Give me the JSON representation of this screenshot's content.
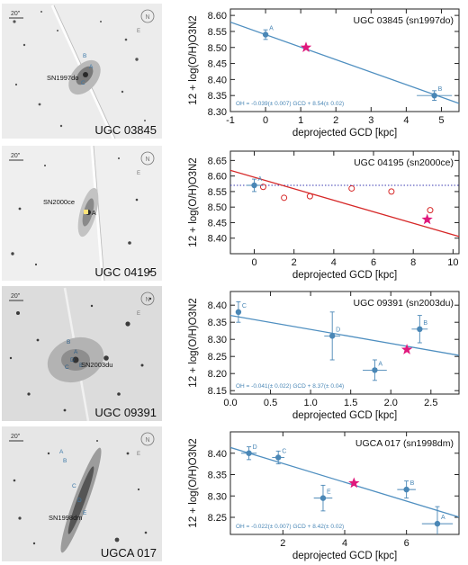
{
  "panels": [
    {
      "galaxy": "UGC 03845",
      "sn_label": "SN1997do",
      "scale": "20\"",
      "regions": [
        "A",
        "B",
        "C"
      ],
      "chart_data": {
        "type": "scatter",
        "title": "UGC 03845 (sn1997do)",
        "xlabel": "deprojected GCD [kpc]",
        "ylabel": "12 + log(O/H)O3N2",
        "xlim": [
          -1,
          5.5
        ],
        "ylim": [
          8.3,
          8.62
        ],
        "xticks": [
          -1,
          0,
          1,
          2,
          3,
          4,
          5
        ],
        "yticks": [
          8.3,
          8.35,
          8.4,
          8.45,
          8.5,
          8.55,
          8.6
        ],
        "points": [
          {
            "label": "A",
            "x": 0.0,
            "y": 8.54,
            "xerr": 0.0,
            "yerr": 0.015
          },
          {
            "label": "B",
            "x": 4.8,
            "y": 8.35,
            "xerr": 0.5,
            "yerr": 0.015
          }
        ],
        "sn": {
          "x": 1.15,
          "y": 8.5
        },
        "fit": {
          "slope": -0.039,
          "intercept": 8.54
        },
        "fit_color": "#4f8fc0",
        "fit_text": "OH = -0.039(± 0.007) GCD + 8.54(± 0.02)"
      }
    },
    {
      "galaxy": "UGC 04195",
      "sn_label": "SN2000ce",
      "scale": "20\"",
      "regions": [
        "A"
      ],
      "chart_data": {
        "type": "scatter",
        "title": "UGC 04195 (sn2000ce)",
        "xlabel": "deprojected GCD [kpc]",
        "ylabel": "12 + log(O/H)O3N2",
        "xlim": [
          -1.2,
          10.3
        ],
        "ylim": [
          8.35,
          8.68
        ],
        "xticks": [
          0,
          2,
          4,
          6,
          8,
          10
        ],
        "yticks": [
          8.4,
          8.45,
          8.5,
          8.55,
          8.6,
          8.65
        ],
        "points": [
          {
            "label": "A",
            "x": 0.0,
            "y": 8.57,
            "xerr": 0.4,
            "yerr": 0.02
          }
        ],
        "open_points": [
          {
            "x": 0.45,
            "y": 8.565
          },
          {
            "x": 1.5,
            "y": 8.53
          },
          {
            "x": 2.8,
            "y": 8.535
          },
          {
            "x": 4.9,
            "y": 8.56
          },
          {
            "x": 6.9,
            "y": 8.55
          },
          {
            "x": 8.85,
            "y": 8.49
          }
        ],
        "sn": {
          "x": 8.7,
          "y": 8.46
        },
        "fit": {
          "slope": -0.0185,
          "intercept": 8.596
        },
        "fit_color": "#d62828",
        "reference_level": 8.57
      }
    },
    {
      "galaxy": "UGC 09391",
      "sn_label": "SN2003du",
      "scale": "20\"",
      "regions": [
        "A",
        "B",
        "C",
        "D",
        "E"
      ],
      "chart_data": {
        "type": "scatter",
        "title": "UGC 09391 (sn2003du)",
        "xlabel": "deprojected GCD [kpc]",
        "ylabel": "12 + log(O/H)O3N2",
        "xlim": [
          0.0,
          2.85
        ],
        "ylim": [
          8.14,
          8.44
        ],
        "xticks": [
          0.0,
          0.5,
          1.0,
          1.5,
          2.0,
          2.5
        ],
        "yticks": [
          8.15,
          8.2,
          8.25,
          8.3,
          8.35,
          8.4
        ],
        "points": [
          {
            "label": "C",
            "x": 0.1,
            "y": 8.38,
            "xerr": 0.0,
            "yerr": 0.03
          },
          {
            "label": "D",
            "x": 1.27,
            "y": 8.31,
            "xerr": 0.1,
            "yerr": 0.07
          },
          {
            "label": "A",
            "x": 1.8,
            "y": 8.21,
            "xerr": 0.15,
            "yerr": 0.03
          },
          {
            "label": "B",
            "x": 2.36,
            "y": 8.33,
            "xerr": 0.1,
            "yerr": 0.04
          }
        ],
        "sn": {
          "x": 2.2,
          "y": 8.27
        },
        "fit": {
          "slope": -0.041,
          "intercept": 8.37
        },
        "fit_color": "#4f8fc0",
        "fit_text": "OH = -0.041(± 0.022) GCD + 8.37(± 0.04)"
      }
    },
    {
      "galaxy": "UGCA 017",
      "sn_label": "SN1998dm",
      "scale": "20\"",
      "regions": [
        "A",
        "B",
        "C",
        "D",
        "E"
      ],
      "chart_data": {
        "type": "scatter",
        "title": "UGCA 017 (sn1998dm)",
        "xlabel": "deprojected GCD [kpc]",
        "ylabel": "12 + log(O/H)O3N2",
        "xlim": [
          0.3,
          7.7
        ],
        "ylim": [
          8.21,
          8.45
        ],
        "xticks": [
          2,
          4,
          6
        ],
        "yticks": [
          8.25,
          8.3,
          8.35,
          8.4
        ],
        "points": [
          {
            "label": "D",
            "x": 0.9,
            "y": 8.4,
            "xerr": 0.25,
            "yerr": 0.015
          },
          {
            "label": "C",
            "x": 1.85,
            "y": 8.39,
            "xerr": 0.2,
            "yerr": 0.015
          },
          {
            "label": "E",
            "x": 3.3,
            "y": 8.295,
            "xerr": 0.3,
            "yerr": 0.03
          },
          {
            "label": "B",
            "x": 6.0,
            "y": 8.315,
            "xerr": 0.3,
            "yerr": 0.02
          },
          {
            "label": "A",
            "x": 7.0,
            "y": 8.235,
            "xerr": 0.5,
            "yerr": 0.04
          }
        ],
        "sn": {
          "x": 4.3,
          "y": 8.33
        },
        "fit": {
          "slope": -0.022,
          "intercept": 8.42
        },
        "fit_color": "#4f8fc0",
        "fit_text": "OH = -0.022(± 0.007) GCD + 8.42(± 0.02)"
      }
    }
  ]
}
